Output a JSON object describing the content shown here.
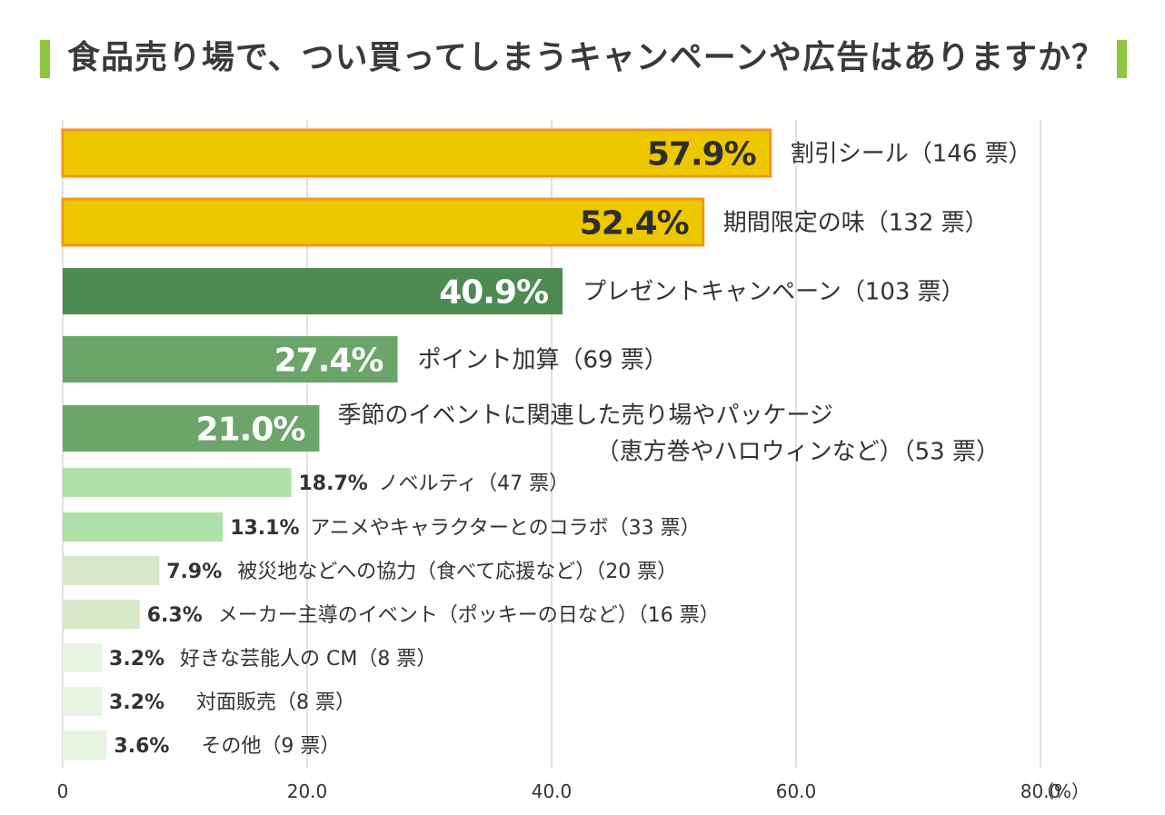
{
  "title": "食品売り場で、つい買ってしまうキャンペーンや広告はありますか？",
  "colors": {
    "title_mark": "#8dc63f",
    "top_bar": "#edc800",
    "top_bar_border": "#f7941d",
    "dark_green": "#4e8b52",
    "mid_green": "#6ba56a",
    "light_green": "#afe2a8",
    "pale_green": "#d7e8c9",
    "faint_green": "#e7f4e0",
    "grid": "#d6d6d6",
    "text": "#333333"
  },
  "chart_data": {
    "type": "bar",
    "orientation": "horizontal",
    "x_unit": "（%）",
    "xlim": [
      0,
      80
    ],
    "x_ticks": [
      "0",
      "20.0",
      "40.0",
      "60.0",
      "80.0"
    ],
    "grid": true,
    "bars": [
      {
        "value": 57.9,
        "value_label": "57.9%",
        "label": "割引シール（146 票）",
        "tier": "top"
      },
      {
        "value": 52.4,
        "value_label": "52.4%",
        "label": "期間限定の味（132 票）",
        "tier": "top"
      },
      {
        "value": 40.9,
        "value_label": "40.9%",
        "label": "プレゼントキャンペーン（103 票）",
        "tier": "dark"
      },
      {
        "value": 27.4,
        "value_label": "27.4%",
        "label": "ポイント加算（69 票）",
        "tier": "mid"
      },
      {
        "value": 21.0,
        "value_label": "21.0%",
        "label": "季節のイベントに関連した売り場やパッケージ",
        "label2": "（恵方巻やハロウィンなど）（53 票）",
        "tier": "mid"
      },
      {
        "value": 18.7,
        "value_label": "18.7%",
        "label": "ノベルティ（47 票）",
        "tier": "light"
      },
      {
        "value": 13.1,
        "value_label": "13.1%",
        "label": "アニメやキャラクターとのコラボ（33 票）",
        "tier": "light"
      },
      {
        "value": 7.9,
        "value_label": "7.9%",
        "label": "被災地などへの協力（食べて応援など）（20 票）",
        "tier": "pale"
      },
      {
        "value": 6.3,
        "value_label": "6.3%",
        "label": "メーカー主導のイベント（ポッキーの日など）（16 票）",
        "tier": "pale"
      },
      {
        "value": 3.2,
        "value_label": "3.2%",
        "label": "好きな芸能人の CM（8 票）",
        "tier": "faint"
      },
      {
        "value": 3.2,
        "value_label": "3.2%",
        "label": "対面販売（8 票）",
        "tier": "faint"
      },
      {
        "value": 3.6,
        "value_label": "3.6%",
        "label": "その他（9 票）",
        "tier": "faint"
      }
    ]
  }
}
